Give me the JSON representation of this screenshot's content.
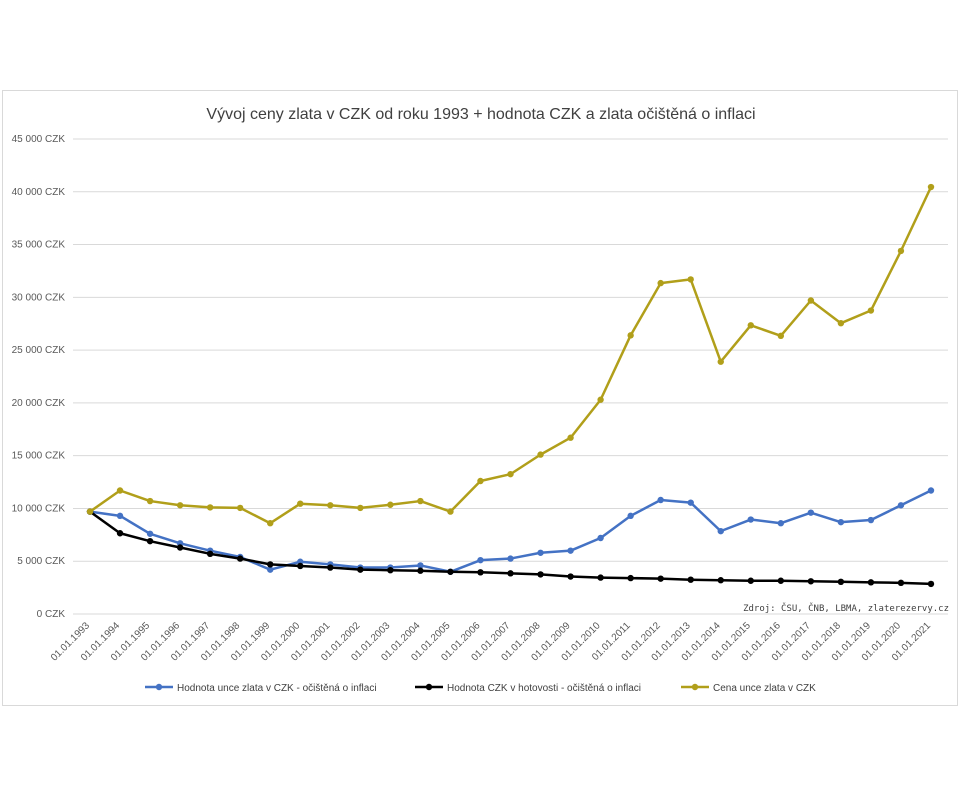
{
  "chart_data": {
    "type": "line",
    "title": "Vývoj ceny zlata v CZK od roku 1993 + hodnota CZK a zlata očištěná o inflaci",
    "source": "Zdroj: ČSU, ČNB, LBMA, zlaterezervy.cz",
    "categories": [
      "01.01.1993",
      "01.01.1994",
      "01.01.1995",
      "01.01.1996",
      "01.01.1997",
      "01.01.1998",
      "01.01.1999",
      "01.01.2000",
      "01.01.2001",
      "01.01.2002",
      "01.01.2003",
      "01.01.2004",
      "01.01.2005",
      "01.01.2006",
      "01.01.2007",
      "01.01.2008",
      "01.01.2009",
      "01.01.2010",
      "01.01.2011",
      "01.01.2012",
      "01.01.2013",
      "01.01.2014",
      "01.01.2015",
      "01.01.2016",
      "01.01.2017",
      "01.01.2018",
      "01.01.2019",
      "01.01.2020",
      "01.01.2021"
    ],
    "y_ticks": [
      "0 CZK",
      "5 000 CZK",
      "10 000 CZK",
      "15 000 CZK",
      "20 000 CZK",
      "25 000 CZK",
      "30 000 CZK",
      "35 000 CZK",
      "40 000 CZK",
      "45 000 CZK"
    ],
    "ylim": [
      0,
      45000
    ],
    "grid": true,
    "legend_position": "bottom",
    "series": [
      {
        "name": "Hodnota unce zlata v CZK - očištěná o inflaci",
        "color": "#4472c4",
        "values": [
          9700,
          9300,
          7600,
          6700,
          6000,
          5400,
          4200,
          4950,
          4700,
          4400,
          4400,
          4600,
          4000,
          5100,
          5250,
          5800,
          6000,
          7200,
          9300,
          10800,
          10550,
          7850,
          8950,
          8600,
          9600,
          8700,
          8900,
          10300,
          11700
        ]
      },
      {
        "name": "Hodnota CZK v hotovosti - očištěná o inflaci",
        "color": "#000000",
        "values": [
          9700,
          7650,
          6900,
          6300,
          5700,
          5250,
          4700,
          4550,
          4400,
          4200,
          4150,
          4100,
          4000,
          3950,
          3850,
          3750,
          3550,
          3450,
          3400,
          3350,
          3250,
          3200,
          3150,
          3150,
          3100,
          3050,
          3000,
          2950,
          2850
        ]
      },
      {
        "name": "Cena unce zlata v CZK",
        "color": "#b19f1a",
        "values": [
          9700,
          11700,
          10700,
          10300,
          10100,
          10050,
          8600,
          10450,
          10300,
          10050,
          10350,
          10700,
          9700,
          12600,
          13250,
          15100,
          16700,
          20300,
          26400,
          31350,
          31700,
          23900,
          27350,
          26350,
          29700,
          27550,
          28750,
          34400,
          40450
        ]
      }
    ]
  }
}
